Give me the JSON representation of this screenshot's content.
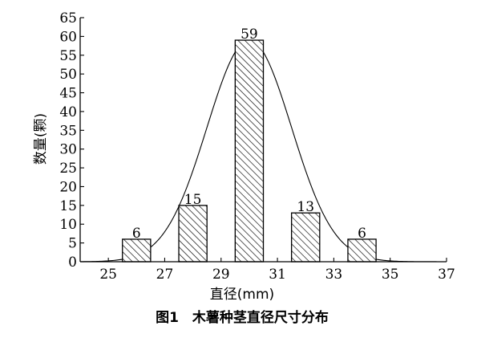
{
  "chart_data": {
    "type": "bar",
    "bar_centers": [
      26,
      28,
      30,
      32,
      34
    ],
    "values": [
      6,
      15,
      59,
      13,
      6
    ],
    "data_labels": [
      "6",
      "15",
      "59",
      "13",
      "6"
    ],
    "bar_width": 1,
    "xlim": [
      24,
      37
    ],
    "ylim": [
      0,
      65
    ],
    "x_ticks": [
      25,
      27,
      29,
      31,
      33,
      35,
      37
    ],
    "y_ticks": [
      0,
      5,
      10,
      15,
      20,
      25,
      30,
      35,
      40,
      45,
      50,
      55,
      60,
      65
    ],
    "xlabel": "直径(mm)",
    "ylabel": "数量(颗)",
    "title": "图1　木薯种茎直径尺寸分布",
    "bar_fill": "diagonal-hatch",
    "curve": {
      "type": "normal-fit",
      "mean": 30,
      "sd": 1.5,
      "peak": 59
    },
    "grid": false,
    "legend": "none"
  }
}
